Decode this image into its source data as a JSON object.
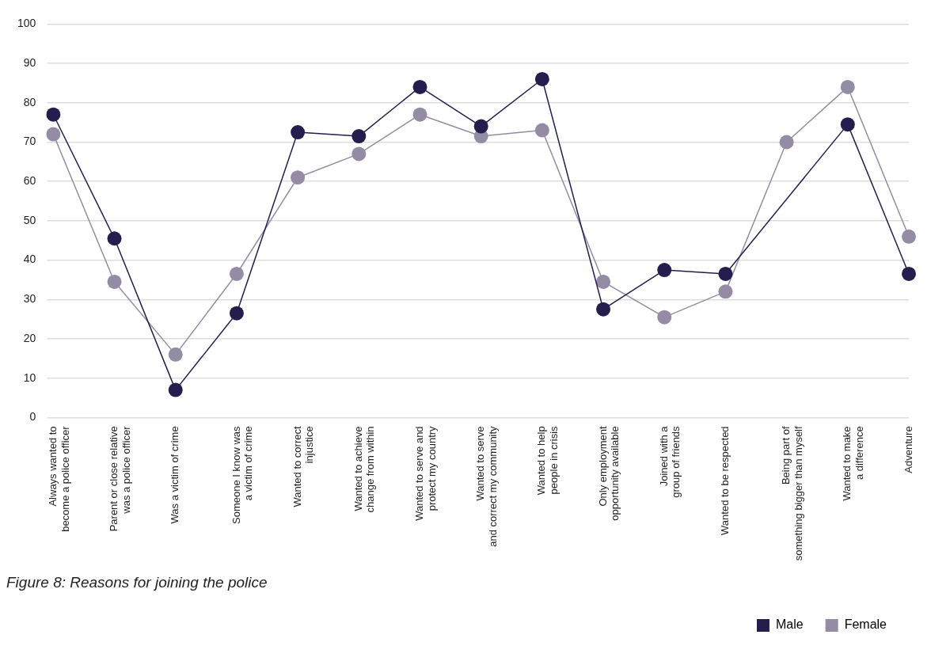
{
  "chart_data": {
    "type": "line",
    "title": "Figure 8: Reasons for joining the police",
    "categories": [
      "Always wanted to\nbecome a police officer",
      "Parent or close relative\nwas a police officer",
      "Was a victim of crime",
      "Someone I know was\na victim of crime",
      "Wanted to correct\ninjustice",
      "Wanted to achieve\nchange from within",
      "Wanted to serve and\nprotect my country",
      "Wanted to serve\nand correct my community",
      "Wanted to help\npeople in crisis",
      "Only employment\nopportunity available",
      "Joined with a\ngroup of friends",
      "Wanted to be respected",
      "Being part of\nsomething bigger than myself",
      "Wanted to make\na difference",
      "Adventure"
    ],
    "series": [
      {
        "name": "Male",
        "color": "#261d4f",
        "values": [
          77,
          45.5,
          7,
          26.5,
          72.5,
          71.5,
          84,
          74,
          86,
          27.5,
          37.5,
          36.5,
          null,
          74.5,
          36.5
        ]
      },
      {
        "name": "Female",
        "color": "#948ba5",
        "values": [
          72,
          34.5,
          16,
          36.5,
          61,
          67,
          77,
          71.5,
          73,
          34.5,
          25.5,
          32,
          70,
          84,
          46
        ]
      }
    ],
    "ylim": [
      0,
      100
    ],
    "yticks": [
      0,
      10,
      20,
      30,
      40,
      50,
      60,
      70,
      80,
      90,
      100
    ],
    "grid": "y",
    "legend": "bottom right",
    "marker": "circle"
  }
}
